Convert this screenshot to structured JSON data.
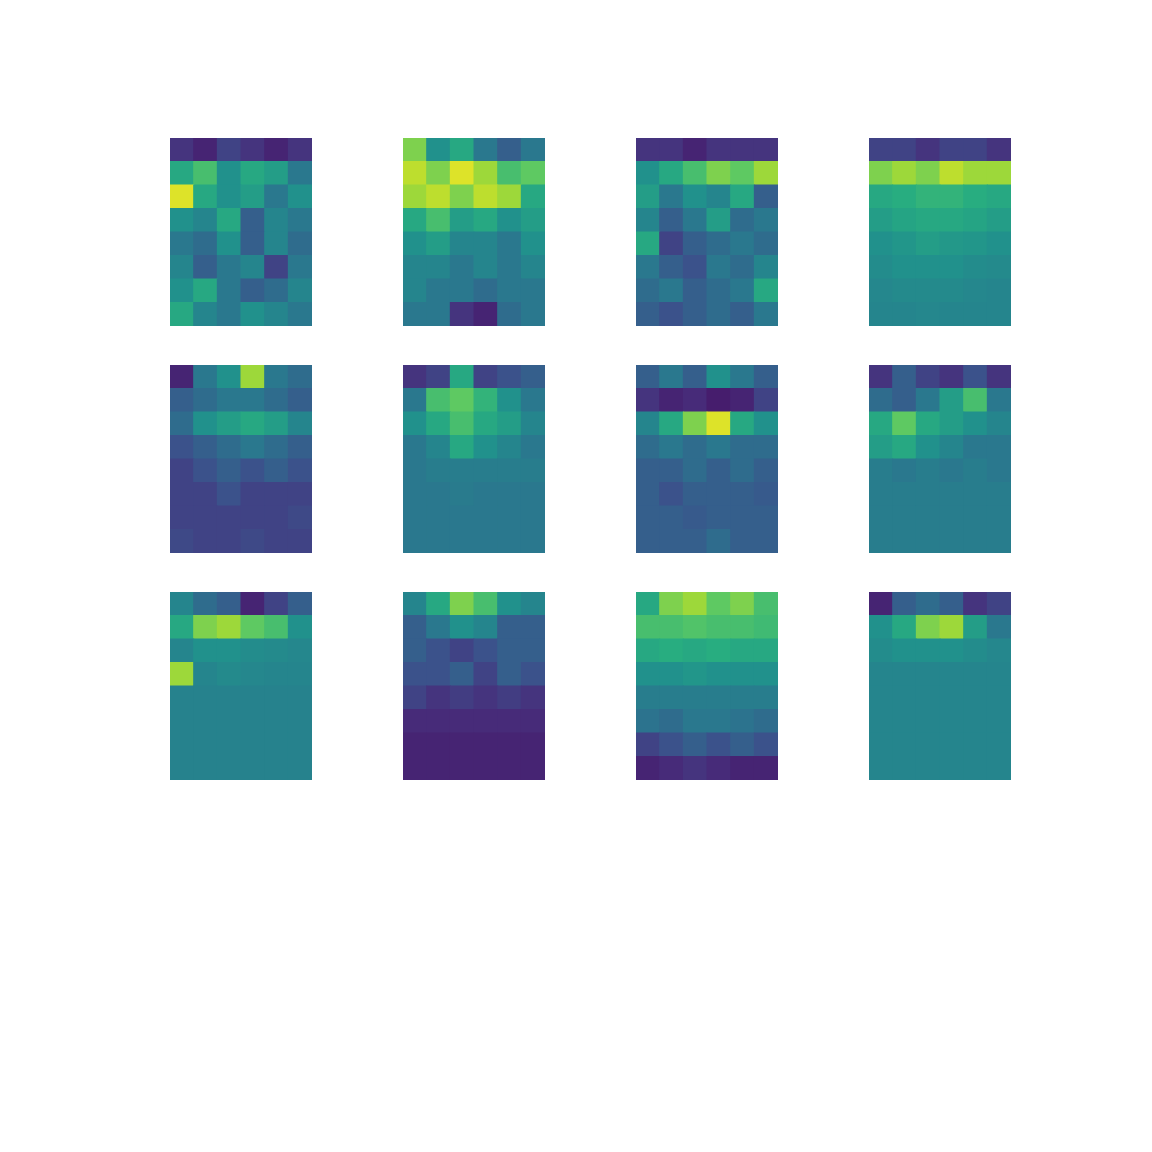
{
  "chart_data": {
    "type": "heatmap",
    "tick_labels": false,
    "zlim": [
      0,
      1
    ],
    "panels": [
      {
        "cells": [
          [
            0.15,
            0.1,
            0.2,
            0.15,
            0.1,
            0.15
          ],
          [
            0.6,
            0.7,
            0.5,
            0.6,
            0.55,
            0.4
          ],
          [
            0.95,
            0.6,
            0.5,
            0.55,
            0.4,
            0.5
          ],
          [
            0.5,
            0.45,
            0.6,
            0.3,
            0.45,
            0.4
          ],
          [
            0.4,
            0.35,
            0.5,
            0.3,
            0.45,
            0.35
          ],
          [
            0.45,
            0.3,
            0.4,
            0.45,
            0.2,
            0.4
          ],
          [
            0.5,
            0.6,
            0.4,
            0.3,
            0.35,
            0.45
          ],
          [
            0.6,
            0.45,
            0.4,
            0.5,
            0.45,
            0.4
          ]
        ]
      },
      {
        "cells": [
          [
            0.8,
            0.5,
            0.6,
            0.4,
            0.3,
            0.4
          ],
          [
            0.9,
            0.8,
            0.95,
            0.85,
            0.7,
            0.75
          ],
          [
            0.85,
            0.9,
            0.8,
            0.9,
            0.85,
            0.6
          ],
          [
            0.6,
            0.7,
            0.55,
            0.6,
            0.5,
            0.55
          ],
          [
            0.5,
            0.55,
            0.45,
            0.45,
            0.4,
            0.5
          ],
          [
            0.45,
            0.45,
            0.4,
            0.45,
            0.4,
            0.45
          ],
          [
            0.45,
            0.4,
            0.4,
            0.35,
            0.4,
            0.4
          ],
          [
            0.4,
            0.4,
            0.15,
            0.1,
            0.35,
            0.4
          ]
        ]
      },
      {
        "cells": [
          [
            0.15,
            0.15,
            0.1,
            0.15,
            0.15,
            0.15
          ],
          [
            0.5,
            0.6,
            0.7,
            0.8,
            0.75,
            0.85
          ],
          [
            0.55,
            0.4,
            0.5,
            0.45,
            0.6,
            0.3
          ],
          [
            0.45,
            0.3,
            0.4,
            0.55,
            0.35,
            0.4
          ],
          [
            0.6,
            0.2,
            0.3,
            0.35,
            0.4,
            0.35
          ],
          [
            0.4,
            0.3,
            0.25,
            0.4,
            0.35,
            0.45
          ],
          [
            0.35,
            0.4,
            0.3,
            0.35,
            0.4,
            0.6
          ],
          [
            0.3,
            0.25,
            0.3,
            0.35,
            0.3,
            0.4
          ]
        ]
      },
      {
        "cells": [
          [
            0.2,
            0.2,
            0.15,
            0.2,
            0.2,
            0.15
          ],
          [
            0.8,
            0.85,
            0.8,
            0.9,
            0.85,
            0.85
          ],
          [
            0.6,
            0.62,
            0.65,
            0.65,
            0.62,
            0.6
          ],
          [
            0.55,
            0.58,
            0.6,
            0.6,
            0.58,
            0.55
          ],
          [
            0.5,
            0.52,
            0.55,
            0.53,
            0.52,
            0.5
          ],
          [
            0.48,
            0.5,
            0.5,
            0.5,
            0.48,
            0.47
          ],
          [
            0.46,
            0.47,
            0.47,
            0.47,
            0.46,
            0.45
          ],
          [
            0.45,
            0.45,
            0.46,
            0.45,
            0.45,
            0.45
          ]
        ]
      },
      {
        "cells": [
          [
            0.1,
            0.4,
            0.5,
            0.85,
            0.4,
            0.35
          ],
          [
            0.3,
            0.35,
            0.4,
            0.4,
            0.35,
            0.3
          ],
          [
            0.35,
            0.5,
            0.55,
            0.6,
            0.55,
            0.45
          ],
          [
            0.25,
            0.3,
            0.35,
            0.4,
            0.35,
            0.3
          ],
          [
            0.2,
            0.25,
            0.3,
            0.25,
            0.3,
            0.25
          ],
          [
            0.2,
            0.2,
            0.25,
            0.2,
            0.2,
            0.2
          ],
          [
            0.2,
            0.2,
            0.2,
            0.2,
            0.2,
            0.22
          ],
          [
            0.22,
            0.2,
            0.2,
            0.22,
            0.2,
            0.2
          ]
        ]
      },
      {
        "cells": [
          [
            0.15,
            0.2,
            0.6,
            0.2,
            0.25,
            0.3
          ],
          [
            0.4,
            0.7,
            0.75,
            0.65,
            0.5,
            0.4
          ],
          [
            0.5,
            0.6,
            0.7,
            0.6,
            0.55,
            0.45
          ],
          [
            0.4,
            0.45,
            0.6,
            0.5,
            0.45,
            0.4
          ],
          [
            0.4,
            0.42,
            0.42,
            0.42,
            0.42,
            0.42
          ],
          [
            0.4,
            0.4,
            0.41,
            0.4,
            0.4,
            0.4
          ],
          [
            0.4,
            0.4,
            0.4,
            0.4,
            0.4,
            0.4
          ],
          [
            0.4,
            0.4,
            0.4,
            0.4,
            0.4,
            0.4
          ]
        ]
      },
      {
        "cells": [
          [
            0.3,
            0.4,
            0.3,
            0.5,
            0.4,
            0.3
          ],
          [
            0.15,
            0.1,
            0.12,
            0.08,
            0.1,
            0.2
          ],
          [
            0.45,
            0.6,
            0.8,
            0.95,
            0.6,
            0.5
          ],
          [
            0.35,
            0.4,
            0.35,
            0.4,
            0.35,
            0.35
          ],
          [
            0.3,
            0.3,
            0.35,
            0.3,
            0.35,
            0.3
          ],
          [
            0.3,
            0.25,
            0.3,
            0.3,
            0.3,
            0.28
          ],
          [
            0.3,
            0.3,
            0.28,
            0.3,
            0.3,
            0.3
          ],
          [
            0.3,
            0.3,
            0.3,
            0.35,
            0.3,
            0.3
          ]
        ]
      },
      {
        "cells": [
          [
            0.15,
            0.3,
            0.2,
            0.15,
            0.25,
            0.15
          ],
          [
            0.35,
            0.3,
            0.4,
            0.55,
            0.7,
            0.4
          ],
          [
            0.6,
            0.75,
            0.6,
            0.55,
            0.5,
            0.45
          ],
          [
            0.55,
            0.6,
            0.5,
            0.45,
            0.4,
            0.4
          ],
          [
            0.42,
            0.4,
            0.42,
            0.4,
            0.42,
            0.4
          ],
          [
            0.42,
            0.42,
            0.42,
            0.42,
            0.42,
            0.42
          ],
          [
            0.42,
            0.42,
            0.42,
            0.42,
            0.42,
            0.42
          ],
          [
            0.42,
            0.42,
            0.42,
            0.42,
            0.42,
            0.42
          ]
        ]
      },
      {
        "cells": [
          [
            0.45,
            0.35,
            0.3,
            0.1,
            0.2,
            0.3
          ],
          [
            0.6,
            0.8,
            0.85,
            0.75,
            0.7,
            0.5
          ],
          [
            0.45,
            0.5,
            0.5,
            0.48,
            0.47,
            0.46
          ],
          [
            0.85,
            0.45,
            0.47,
            0.46,
            0.45,
            0.45
          ],
          [
            0.44,
            0.44,
            0.44,
            0.44,
            0.44,
            0.44
          ],
          [
            0.44,
            0.44,
            0.44,
            0.44,
            0.44,
            0.44
          ],
          [
            0.44,
            0.44,
            0.44,
            0.44,
            0.44,
            0.44
          ],
          [
            0.44,
            0.44,
            0.44,
            0.44,
            0.44,
            0.44
          ]
        ]
      },
      {
        "cells": [
          [
            0.45,
            0.6,
            0.8,
            0.7,
            0.5,
            0.45
          ],
          [
            0.3,
            0.4,
            0.5,
            0.45,
            0.3,
            0.3
          ],
          [
            0.3,
            0.25,
            0.2,
            0.25,
            0.3,
            0.3
          ],
          [
            0.25,
            0.25,
            0.3,
            0.2,
            0.3,
            0.25
          ],
          [
            0.2,
            0.15,
            0.18,
            0.15,
            0.18,
            0.15
          ],
          [
            0.12,
            0.12,
            0.12,
            0.12,
            0.12,
            0.12
          ],
          [
            0.1,
            0.1,
            0.1,
            0.1,
            0.1,
            0.1
          ],
          [
            0.1,
            0.1,
            0.1,
            0.1,
            0.1,
            0.1
          ]
        ]
      },
      {
        "cells": [
          [
            0.6,
            0.8,
            0.85,
            0.75,
            0.8,
            0.7
          ],
          [
            0.7,
            0.7,
            0.72,
            0.7,
            0.7,
            0.68
          ],
          [
            0.6,
            0.62,
            0.6,
            0.62,
            0.6,
            0.6
          ],
          [
            0.5,
            0.5,
            0.52,
            0.5,
            0.5,
            0.5
          ],
          [
            0.42,
            0.42,
            0.42,
            0.42,
            0.42,
            0.42
          ],
          [
            0.38,
            0.35,
            0.4,
            0.4,
            0.38,
            0.35
          ],
          [
            0.2,
            0.25,
            0.3,
            0.25,
            0.3,
            0.25
          ],
          [
            0.1,
            0.12,
            0.15,
            0.12,
            0.1,
            0.1
          ]
        ]
      },
      {
        "cells": [
          [
            0.1,
            0.3,
            0.35,
            0.3,
            0.15,
            0.2
          ],
          [
            0.5,
            0.6,
            0.8,
            0.85,
            0.55,
            0.4
          ],
          [
            0.48,
            0.5,
            0.5,
            0.5,
            0.48,
            0.46
          ],
          [
            0.45,
            0.45,
            0.45,
            0.45,
            0.45,
            0.45
          ],
          [
            0.45,
            0.45,
            0.45,
            0.45,
            0.45,
            0.45
          ],
          [
            0.45,
            0.45,
            0.45,
            0.45,
            0.45,
            0.45
          ],
          [
            0.45,
            0.45,
            0.45,
            0.45,
            0.45,
            0.45
          ],
          [
            0.45,
            0.45,
            0.45,
            0.45,
            0.45,
            0.45
          ]
        ]
      }
    ]
  }
}
